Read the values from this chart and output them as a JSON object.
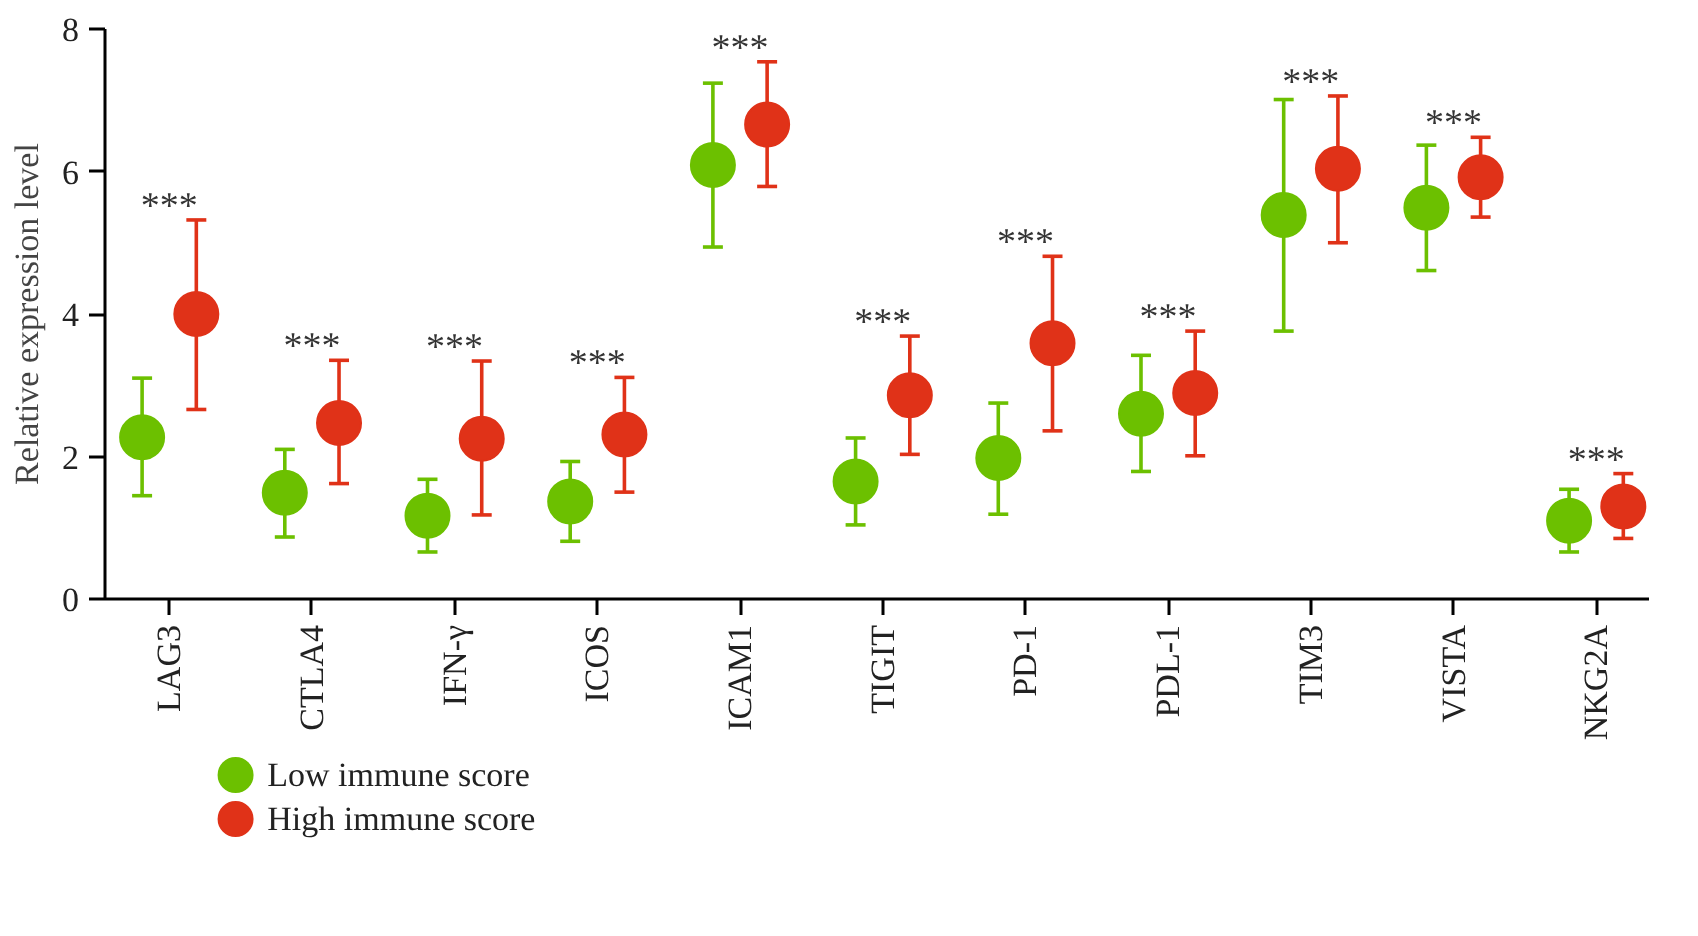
{
  "chart_data": {
    "type": "scatter",
    "ylabel": "Relative expression level",
    "categories": [
      "LAG3",
      "CTLA4",
      "IFN-γ",
      "ICOS",
      "ICAM1",
      "TIGIT",
      "PD-1",
      "PDL-1",
      "TIM3",
      "VISTA",
      "NKG2A"
    ],
    "ylim": [
      0,
      8
    ],
    "yticks": [
      0,
      2,
      4,
      6,
      8
    ],
    "grid": false,
    "legend": "bottom left",
    "marker": "circle",
    "series": [
      {
        "name": "Low immune score",
        "color": "#6cc000",
        "values": [
          2.27,
          1.49,
          1.17,
          1.37,
          6.09,
          1.65,
          1.98,
          2.6,
          5.39,
          5.49,
          1.1
        ],
        "errors": [
          [
            1.45,
            3.1
          ],
          [
            0.87,
            2.1
          ],
          [
            0.66,
            1.68
          ],
          [
            0.81,
            1.93
          ],
          [
            4.94,
            7.24
          ],
          [
            1.04,
            2.26
          ],
          [
            1.19,
            2.75
          ],
          [
            1.79,
            3.42
          ],
          [
            3.76,
            7.01
          ],
          [
            4.61,
            6.37
          ],
          [
            0.66,
            1.54
          ]
        ]
      },
      {
        "name": "High immune score",
        "color": "#e03218",
        "values": [
          4.0,
          2.47,
          2.25,
          2.31,
          6.66,
          2.86,
          3.59,
          2.89,
          6.04,
          5.92,
          1.3
        ],
        "errors": [
          [
            2.66,
            5.32
          ],
          [
            1.62,
            3.35
          ],
          [
            1.18,
            3.34
          ],
          [
            1.5,
            3.11
          ],
          [
            5.79,
            7.54
          ],
          [
            2.03,
            3.69
          ],
          [
            2.36,
            4.81
          ],
          [
            2.01,
            3.76
          ],
          [
            5.0,
            7.06
          ],
          [
            5.36,
            6.48
          ],
          [
            0.85,
            1.76
          ]
        ]
      }
    ],
    "annotations": [
      "***",
      "***",
      "***",
      "***",
      "***",
      "***",
      "***",
      "***",
      "***",
      "***",
      "***"
    ]
  }
}
